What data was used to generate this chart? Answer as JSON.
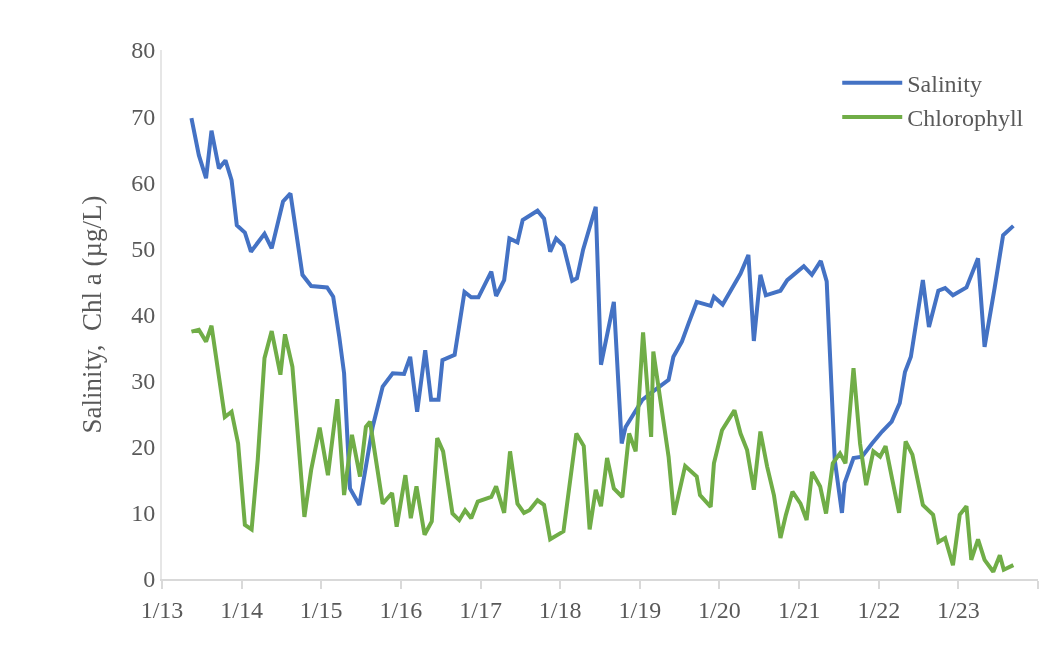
{
  "chart_data": {
    "type": "line",
    "ylabel": "Salinity,  Chl a (µg/L)",
    "xlim": [
      "2013-01-01",
      "2024-01-01"
    ],
    "xticks": [
      {
        "value": "2013-01-01",
        "label": "1/13"
      },
      {
        "value": "2014-01-01",
        "label": "1/14"
      },
      {
        "value": "2015-01-01",
        "label": "1/15"
      },
      {
        "value": "2016-01-01",
        "label": "1/16"
      },
      {
        "value": "2017-01-01",
        "label": "1/17"
      },
      {
        "value": "2018-01-01",
        "label": "1/18"
      },
      {
        "value": "2019-01-01",
        "label": "1/19"
      },
      {
        "value": "2020-01-01",
        "label": "1/20"
      },
      {
        "value": "2021-01-01",
        "label": "1/21"
      },
      {
        "value": "2022-01-01",
        "label": "1/22"
      },
      {
        "value": "2023-01-01",
        "label": "1/23"
      },
      {
        "value": "2024-01-01",
        "label": null
      }
    ],
    "ylim": [
      0,
      80
    ],
    "yticks": [
      0,
      10,
      20,
      30,
      40,
      50,
      60,
      70,
      80
    ],
    "grid": false,
    "legend": "top right",
    "marker": "none",
    "line_style": "solid",
    "series": [
      {
        "name": "Salinity",
        "color": "#4472c4",
        "x": [
          "2013-05-16",
          "2013-06-19",
          "2013-07-22",
          "2013-08-16",
          "2013-09-19",
          "2013-10-19",
          "2013-11-16",
          "2013-12-10",
          "2014-01-16",
          "2014-02-13",
          "2014-04-16",
          "2014-05-19",
          "2014-07-10",
          "2014-08-13",
          "2014-10-07",
          "2014-11-16",
          "2015-01-28",
          "2015-02-25",
          "2015-03-25",
          "2015-04-16",
          "2015-05-13",
          "2015-06-25",
          "2015-08-25",
          "2015-10-10",
          "2015-11-25",
          "2016-01-16",
          "2016-02-13",
          "2016-03-16",
          "2016-04-22",
          "2016-05-19",
          "2016-06-22",
          "2016-07-10",
          "2016-09-04",
          "2016-10-19",
          "2016-11-19",
          "2016-12-22",
          "2017-02-19",
          "2017-03-13",
          "2017-04-19",
          "2017-05-13",
          "2017-06-19",
          "2017-07-13",
          "2017-09-19",
          "2017-10-19",
          "2017-11-16",
          "2017-12-13",
          "2018-01-16",
          "2018-02-25",
          "2018-03-19",
          "2018-04-16",
          "2018-06-13",
          "2018-07-07",
          "2018-09-04",
          "2018-10-10",
          "2018-10-28",
          "2019-01-13",
          "2019-02-28",
          "2019-05-13",
          "2019-06-04",
          "2019-07-13",
          "2019-08-13",
          "2019-09-19",
          "2019-11-22",
          "2019-12-07",
          "2020-01-16",
          "2020-04-07",
          "2020-05-13",
          "2020-06-07",
          "2020-07-07",
          "2020-08-01",
          "2020-10-07",
          "2020-11-07",
          "2021-01-22",
          "2021-02-28",
          "2021-04-10",
          "2021-05-07",
          "2021-06-13",
          "2021-07-16",
          "2021-07-28",
          "2021-09-07",
          "2021-10-16",
          "2021-12-01",
          "2022-01-16",
          "2022-03-01",
          "2022-04-07",
          "2022-05-01",
          "2022-05-28",
          "2022-07-22",
          "2022-08-19",
          "2022-10-01",
          "2022-11-01",
          "2022-12-07",
          "2023-02-07",
          "2023-04-01",
          "2023-05-01",
          "2023-06-16",
          "2023-07-25",
          "2023-09-10"
        ],
        "values": [
          69.7,
          64.1,
          60.6,
          67.8,
          62.1,
          63.3,
          60.3,
          53.5,
          52.4,
          49.5,
          52.2,
          50.0,
          57.1,
          58.3,
          46.0,
          44.3,
          44.1,
          42.7,
          36.6,
          31.1,
          13.7,
          11.2,
          23.0,
          29.1,
          31.1,
          31.0,
          33.6,
          25.3,
          34.6,
          27.1,
          27.1,
          33.1,
          33.9,
          43.4,
          42.6,
          42.6,
          46.5,
          42.8,
          45.2,
          51.5,
          50.9,
          54.3,
          55.7,
          54.5,
          49.5,
          51.5,
          50.4,
          45.1,
          45.5,
          49.8,
          56.3,
          32.4,
          41.9,
          20.5,
          23.0,
          27.1,
          28.3,
          30.1,
          33.6,
          35.9,
          38.7,
          41.9,
          41.3,
          42.7,
          41.5,
          46.2,
          49.0,
          36.0,
          46.0,
          42.9,
          43.6,
          45.2,
          47.3,
          46.0,
          48.1,
          45.0,
          18.0,
          10.0,
          14.5,
          18.3,
          18.5,
          20.5,
          22.3,
          23.8,
          26.6,
          31.3,
          33.6,
          45.2,
          38.1,
          43.6,
          44.0,
          42.9,
          44.1,
          48.5,
          35.1,
          44.0,
          52.0,
          53.4
        ]
      },
      {
        "name": "Chlorophyll",
        "color": "#70ad47",
        "x": [
          "2013-05-16",
          "2013-06-19",
          "2013-07-22",
          "2013-08-16",
          "2013-10-16",
          "2013-11-16",
          "2013-12-16",
          "2014-01-16",
          "2014-02-16",
          "2014-03-16",
          "2014-04-16",
          "2014-05-19",
          "2014-06-28",
          "2014-07-19",
          "2014-08-22",
          "2014-10-16",
          "2014-11-16",
          "2014-12-25",
          "2015-02-01",
          "2015-03-16",
          "2015-04-16",
          "2015-05-22",
          "2015-06-28",
          "2015-07-25",
          "2015-08-13",
          "2015-10-10",
          "2015-11-22",
          "2015-12-13",
          "2016-01-22",
          "2016-02-16",
          "2016-03-13",
          "2016-04-19",
          "2016-05-22",
          "2016-06-16",
          "2016-07-13",
          "2016-08-25",
          "2016-09-25",
          "2016-10-22",
          "2016-11-19",
          "2016-12-19",
          "2017-02-19",
          "2017-03-13",
          "2017-04-19",
          "2017-05-16",
          "2017-06-19",
          "2017-07-19",
          "2017-08-13",
          "2017-09-19",
          "2017-10-19",
          "2017-11-16",
          "2018-01-16",
          "2018-03-16",
          "2018-04-19",
          "2018-05-16",
          "2018-06-13",
          "2018-07-07",
          "2018-08-04",
          "2018-09-04",
          "2018-10-13",
          "2018-11-13",
          "2018-12-13",
          "2019-01-16",
          "2019-02-22",
          "2019-03-04",
          "2019-05-13",
          "2019-06-07",
          "2019-07-28",
          "2019-09-19",
          "2019-10-04",
          "2019-11-22",
          "2019-12-07",
          "2020-01-13",
          "2020-03-10",
          "2020-04-07",
          "2020-05-07",
          "2020-06-07",
          "2020-07-07",
          "2020-08-07",
          "2020-09-07",
          "2020-10-07",
          "2020-11-01",
          "2020-12-01",
          "2021-01-07",
          "2021-02-04",
          "2021-03-01",
          "2021-04-07",
          "2021-05-04",
          "2021-06-04",
          "2021-07-07",
          "2021-08-01",
          "2021-09-07",
          "2021-10-07",
          "2021-11-04",
          "2021-12-07",
          "2022-01-07",
          "2022-02-01",
          "2022-03-04",
          "2022-04-04",
          "2022-05-04",
          "2022-06-04",
          "2022-07-22",
          "2022-09-07",
          "2022-10-01",
          "2022-11-01",
          "2022-12-07",
          "2023-01-07",
          "2023-02-07",
          "2023-03-01",
          "2023-04-01",
          "2023-05-01",
          "2023-06-10",
          "2023-07-10",
          "2023-07-28",
          "2023-09-10"
        ],
        "values": [
          37.4,
          37.7,
          35.9,
          38.3,
          24.5,
          25.3,
          20.5,
          8.2,
          7.5,
          18.0,
          33.4,
          37.5,
          30.9,
          37.0,
          32.1,
          9.4,
          16.5,
          22.9,
          15.7,
          27.2,
          12.7,
          21.8,
          15.5,
          23.0,
          23.8,
          11.4,
          13.0,
          7.9,
          15.7,
          9.2,
          14.0,
          6.7,
          8.7,
          21.3,
          19.3,
          9.9,
          8.9,
          10.4,
          9.2,
          11.7,
          12.4,
          14.0,
          10.0,
          19.3,
          11.4,
          10.0,
          10.4,
          11.9,
          11.2,
          6.0,
          7.2,
          22.0,
          20.1,
          7.5,
          13.5,
          11.0,
          18.3,
          13.7,
          12.4,
          22.0,
          19.3,
          37.3,
          21.5,
          34.4,
          18.5,
          9.7,
          17.1,
          15.5,
          12.7,
          10.9,
          17.5,
          22.5,
          25.5,
          22.0,
          19.5,
          13.5,
          22.3,
          17.0,
          12.7,
          6.2,
          9.7,
          13.2,
          11.4,
          8.9,
          16.2,
          14.0,
          9.9,
          17.5,
          19.0,
          17.5,
          31.9,
          20.5,
          14.2,
          19.3,
          18.5,
          20.1,
          15.0,
          10.0,
          20.8,
          18.8,
          11.2,
          9.7,
          5.6,
          6.2,
          2.1,
          9.7,
          11.0,
          2.9,
          6.0,
          2.9,
          1.1,
          3.6,
          1.4,
          2.1
        ]
      }
    ]
  }
}
